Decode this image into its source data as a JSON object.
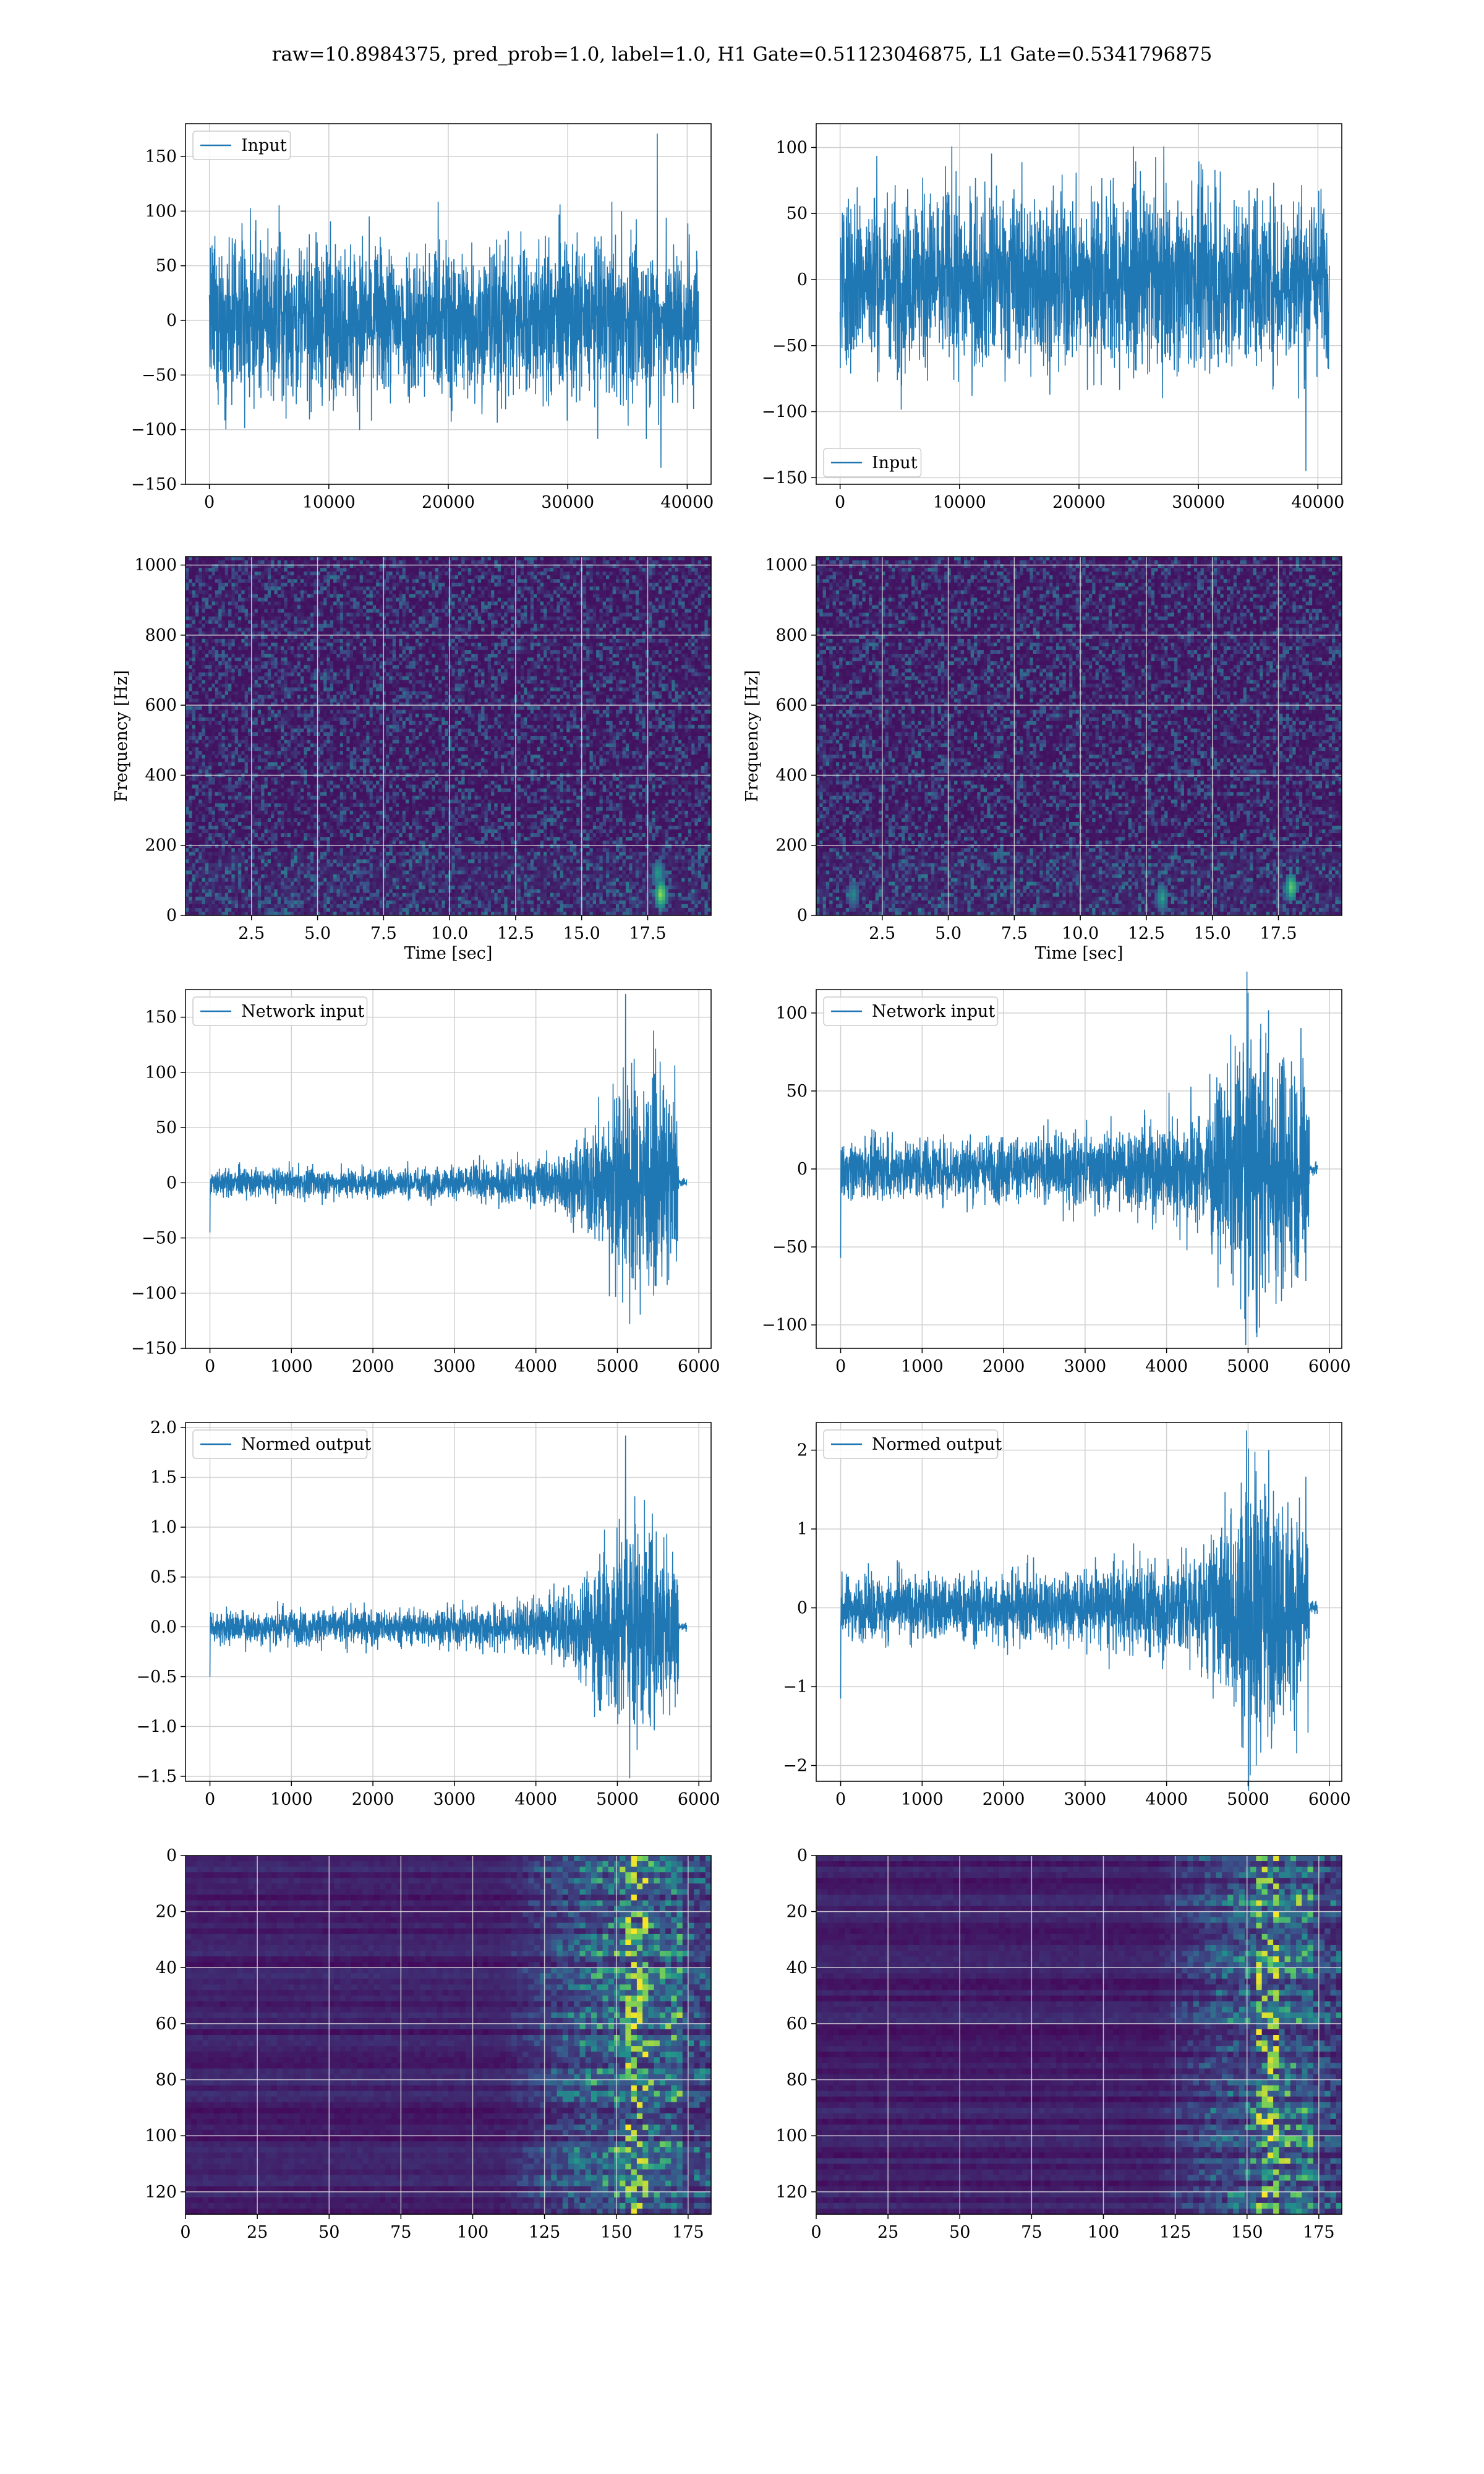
{
  "suptitle": "raw=10.8984375, pred_prob=1.0, label=1.0, H1 Gate=0.51123046875, L1 Gate=0.5341796875",
  "colors": {
    "series": "#1f77b4",
    "grid": "#d0d0d0",
    "viridis_low": "#440154",
    "viridis_mid": "#21918c",
    "viridis_high": "#fde725"
  },
  "chart_data": [
    {
      "id": "h1-input",
      "type": "line",
      "legend": "Input",
      "legend_loc": "upper left",
      "xlim": [
        -2000,
        42000
      ],
      "ylim": [
        -150,
        180
      ],
      "xticks": [
        0,
        10000,
        20000,
        30000,
        40000
      ],
      "xtick_labels": [
        "0",
        "10000",
        "20000",
        "30000",
        "40000"
      ],
      "yticks": [
        -150,
        -100,
        -50,
        0,
        50,
        100,
        150
      ],
      "ytick_labels": [
        "−150",
        "−100",
        "−50",
        "0",
        "50",
        "100",
        "150"
      ],
      "grid": true,
      "signal": {
        "x_start": 0,
        "x_end": 40960,
        "envelope": [
          [
            0,
            70
          ],
          [
            40960,
            70
          ]
        ],
        "peaks": [
          [
            37500,
            171
          ],
          [
            37800,
            -135
          ]
        ]
      }
    },
    {
      "id": "l1-input",
      "type": "line",
      "legend": "Input",
      "legend_loc": "lower left",
      "xlim": [
        -2000,
        42000
      ],
      "ylim": [
        -155,
        118
      ],
      "xticks": [
        0,
        10000,
        20000,
        30000,
        40000
      ],
      "xtick_labels": [
        "0",
        "10000",
        "20000",
        "30000",
        "40000"
      ],
      "yticks": [
        -150,
        -100,
        -50,
        0,
        50,
        100
      ],
      "ytick_labels": [
        "−150",
        "−100",
        "−50",
        "0",
        "50",
        "100"
      ],
      "grid": true,
      "signal": {
        "x_start": 0,
        "x_end": 40960,
        "envelope": [
          [
            0,
            65
          ],
          [
            40960,
            65
          ]
        ],
        "peaks": [
          [
            39000,
            -145
          ]
        ]
      }
    },
    {
      "id": "h1-spectrogram",
      "type": "heatmap",
      "xlabel": "Time [sec]",
      "ylabel": "Frequency [Hz]",
      "xlim": [
        0,
        19.9
      ],
      "ylim": [
        0,
        1024
      ],
      "xticks": [
        2.5,
        5,
        7.5,
        10,
        12.5,
        15,
        17.5
      ],
      "xtick_labels": [
        "2.5",
        "5.0",
        "7.5",
        "10.0",
        "12.5",
        "15.0",
        "17.5"
      ],
      "yticks": [
        0,
        200,
        400,
        600,
        800,
        1000
      ],
      "ytick_labels": [
        "0",
        "200",
        "400",
        "600",
        "800",
        "1000"
      ],
      "grid": true,
      "colormap": "viridis",
      "hotspots": [
        [
          18.0,
          60,
          0.9
        ],
        [
          17.9,
          120,
          0.6
        ]
      ]
    },
    {
      "id": "l1-spectrogram",
      "type": "heatmap",
      "xlabel": "Time [sec]",
      "ylabel": "Frequency [Hz]",
      "xlim": [
        0,
        19.9
      ],
      "ylim": [
        0,
        1024
      ],
      "xticks": [
        2.5,
        5,
        7.5,
        10,
        12.5,
        15,
        17.5
      ],
      "xtick_labels": [
        "2.5",
        "5.0",
        "7.5",
        "10.0",
        "12.5",
        "15.0",
        "17.5"
      ],
      "yticks": [
        0,
        200,
        400,
        600,
        800,
        1000
      ],
      "ytick_labels": [
        "0",
        "200",
        "400",
        "600",
        "800",
        "1000"
      ],
      "grid": true,
      "colormap": "viridis",
      "hotspots": [
        [
          18.0,
          80,
          0.8
        ],
        [
          13.1,
          50,
          0.6
        ],
        [
          1.4,
          60,
          0.5
        ]
      ]
    },
    {
      "id": "h1-network-input",
      "type": "line",
      "legend": "Network input",
      "legend_loc": "upper left",
      "xlim": [
        -300,
        6150
      ],
      "ylim": [
        -150,
        175
      ],
      "xticks": [
        0,
        1000,
        2000,
        3000,
        4000,
        5000,
        6000
      ],
      "xtick_labels": [
        "0",
        "1000",
        "2000",
        "3000",
        "4000",
        "5000",
        "6000"
      ],
      "yticks": [
        -150,
        -100,
        -50,
        0,
        50,
        100,
        150
      ],
      "ytick_labels": [
        "−150",
        "−100",
        "−50",
        "0",
        "50",
        "100",
        "150"
      ],
      "grid": true,
      "signal": {
        "x_start": 0,
        "x_end": 5750,
        "tail_end": 5850,
        "envelope": [
          [
            0,
            12
          ],
          [
            3000,
            14
          ],
          [
            4200,
            22
          ],
          [
            4600,
            40
          ],
          [
            4900,
            80
          ],
          [
            5200,
            95
          ],
          [
            5600,
            85
          ],
          [
            5750,
            70
          ]
        ],
        "peaks": [
          [
            5100,
            171
          ],
          [
            5150,
            -128
          ],
          [
            0,
            -45
          ]
        ]
      }
    },
    {
      "id": "l1-network-input",
      "type": "line",
      "legend": "Network input",
      "legend_loc": "upper left",
      "xlim": [
        -300,
        6150
      ],
      "ylim": [
        -115,
        115
      ],
      "xticks": [
        0,
        1000,
        2000,
        3000,
        4000,
        5000,
        6000
      ],
      "xtick_labels": [
        "0",
        "1000",
        "2000",
        "3000",
        "4000",
        "5000",
        "6000"
      ],
      "yticks": [
        -100,
        -50,
        0,
        50,
        100
      ],
      "ytick_labels": [
        "−100",
        "−50",
        "0",
        "50",
        "100"
      ],
      "grid": true,
      "signal": {
        "x_start": 0,
        "x_end": 5750,
        "tail_end": 5850,
        "envelope": [
          [
            0,
            18
          ],
          [
            3000,
            22
          ],
          [
            4400,
            35
          ],
          [
            4700,
            55
          ],
          [
            5000,
            90
          ],
          [
            5400,
            75
          ],
          [
            5750,
            65
          ]
        ],
        "peaks": [
          [
            5000,
            113
          ],
          [
            5100,
            -105
          ],
          [
            0,
            -57
          ]
        ]
      }
    },
    {
      "id": "h1-normed-output",
      "type": "line",
      "legend": "Normed output",
      "legend_loc": "upper left",
      "xlim": [
        -300,
        6150
      ],
      "ylim": [
        -1.55,
        2.05
      ],
      "xticks": [
        0,
        1000,
        2000,
        3000,
        4000,
        5000,
        6000
      ],
      "xtick_labels": [
        "0",
        "1000",
        "2000",
        "3000",
        "4000",
        "5000",
        "6000"
      ],
      "yticks": [
        -1.5,
        -1,
        -0.5,
        0,
        0.5,
        1,
        1.5,
        2
      ],
      "ytick_labels": [
        "−1.5",
        "−1.0",
        "−0.5",
        "0.0",
        "0.5",
        "1.0",
        "1.5",
        "2.0"
      ],
      "grid": true,
      "signal": {
        "x_start": 0,
        "x_end": 5750,
        "tail_end": 5850,
        "envelope": [
          [
            0,
            0.16
          ],
          [
            3000,
            0.18
          ],
          [
            4200,
            0.28
          ],
          [
            4600,
            0.5
          ],
          [
            4900,
            0.95
          ],
          [
            5200,
            1.1
          ],
          [
            5600,
            0.9
          ],
          [
            5750,
            0.8
          ]
        ],
        "peaks": [
          [
            5100,
            1.92
          ],
          [
            5150,
            -1.52
          ],
          [
            0,
            -0.5
          ]
        ]
      }
    },
    {
      "id": "l1-normed-output",
      "type": "line",
      "legend": "Normed output",
      "legend_loc": "upper left",
      "xlim": [
        -300,
        6150
      ],
      "ylim": [
        -2.2,
        2.35
      ],
      "xticks": [
        0,
        1000,
        2000,
        3000,
        4000,
        5000,
        6000
      ],
      "xtick_labels": [
        "0",
        "1000",
        "2000",
        "3000",
        "4000",
        "5000",
        "6000"
      ],
      "yticks": [
        -2,
        -1,
        0,
        1,
        2
      ],
      "ytick_labels": [
        "−2",
        "−1",
        "0",
        "1",
        "2"
      ],
      "grid": true,
      "signal": {
        "x_start": 0,
        "x_end": 5750,
        "tail_end": 5850,
        "envelope": [
          [
            0,
            0.38
          ],
          [
            3000,
            0.45
          ],
          [
            4400,
            0.7
          ],
          [
            4700,
            1.1
          ],
          [
            5000,
            1.8
          ],
          [
            5400,
            1.4
          ],
          [
            5750,
            1.2
          ]
        ],
        "peaks": [
          [
            4980,
            2.25
          ],
          [
            5100,
            -2.0
          ],
          [
            0,
            -1.15
          ]
        ]
      }
    },
    {
      "id": "h1-feature-map",
      "type": "heatmap",
      "xlim": [
        0,
        183
      ],
      "ylim": [
        128,
        0
      ],
      "xticks": [
        0,
        25,
        50,
        75,
        100,
        125,
        150,
        175
      ],
      "xtick_labels": [
        "0",
        "25",
        "50",
        "75",
        "100",
        "125",
        "150",
        "175"
      ],
      "yticks": [
        0,
        20,
        40,
        60,
        80,
        100,
        120
      ],
      "ytick_labels": [
        "0",
        "20",
        "40",
        "60",
        "80",
        "100",
        "120"
      ],
      "grid": true,
      "colormap": "viridis",
      "activation_onset": 110,
      "hot_column": 158
    },
    {
      "id": "l1-feature-map",
      "type": "heatmap",
      "xlim": [
        0,
        183
      ],
      "ylim": [
        128,
        0
      ],
      "xticks": [
        0,
        25,
        50,
        75,
        100,
        125,
        150,
        175
      ],
      "xtick_labels": [
        "0",
        "25",
        "50",
        "75",
        "100",
        "125",
        "150",
        "175"
      ],
      "yticks": [
        0,
        20,
        40,
        60,
        80,
        100,
        120
      ],
      "ytick_labels": [
        "0",
        "20",
        "40",
        "60",
        "80",
        "100",
        "120"
      ],
      "grid": true,
      "colormap": "viridis",
      "activation_onset": 118,
      "hot_column": 158
    }
  ]
}
